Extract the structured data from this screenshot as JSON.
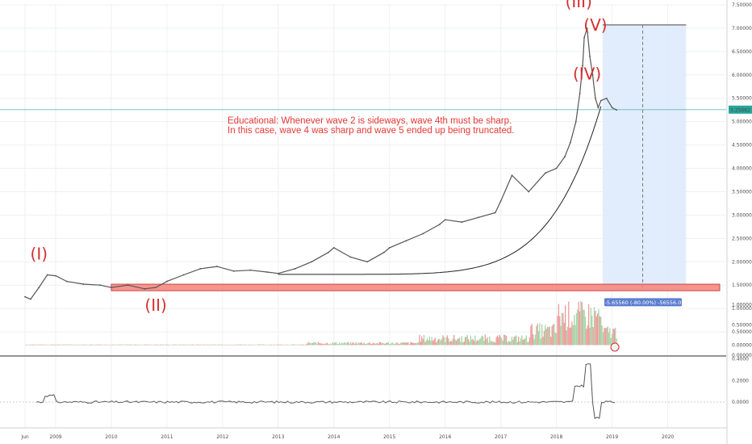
{
  "chart_data": {
    "type": "line",
    "series": [
      {
        "x": [
          2008.45,
          2008.55,
          2008.7,
          2008.85,
          2009.0,
          2009.2,
          2009.5,
          2009.8,
          2010.0,
          2010.3,
          2010.6,
          2010.8,
          2011.0,
          2011.3,
          2011.6,
          2011.9,
          2012.2,
          2012.5,
          2012.8,
          2013.0,
          2013.3,
          2013.6,
          2013.9,
          2014.0,
          2014.3,
          2014.6,
          2014.9,
          2015.0,
          2015.3,
          2015.6,
          2015.9,
          2016.0,
          2016.3,
          2016.6,
          2016.9,
          2017.0,
          2017.2,
          2017.5,
          2017.8,
          2018.0,
          2018.15,
          2018.25,
          2018.35,
          2018.42,
          2018.47,
          2018.5,
          2018.55,
          2018.6,
          2018.65,
          2018.7,
          2018.75,
          2018.8,
          2018.9,
          2019.0,
          2019.08
        ],
        "y": [
          1.25,
          1.2,
          1.45,
          1.72,
          1.7,
          1.58,
          1.52,
          1.5,
          1.45,
          1.5,
          1.42,
          1.45,
          1.58,
          1.72,
          1.85,
          1.9,
          1.8,
          1.82,
          1.78,
          1.75,
          1.85,
          2.0,
          2.2,
          2.3,
          2.1,
          2.0,
          2.2,
          2.3,
          2.45,
          2.6,
          2.8,
          2.9,
          2.85,
          2.95,
          3.05,
          3.3,
          3.85,
          3.5,
          3.9,
          4.0,
          4.25,
          4.55,
          5.0,
          5.6,
          6.2,
          6.8,
          7.0,
          6.4,
          6.0,
          5.5,
          5.3,
          5.45,
          5.5,
          5.3,
          5.25
        ]
      }
    ],
    "y_tick_labels": [
      "7.50000",
      "7.00000",
      "6.50000",
      "6.00000",
      "5.50000",
      "5.00000",
      "4.50000",
      "4.00000",
      "3.50000",
      "3.00000",
      "2.50000",
      "2.00000",
      "1.50000",
      "1.00000",
      "0.50000",
      "0.00000"
    ],
    "y_ticks": [
      7.5,
      7.0,
      6.5,
      6.0,
      5.5,
      5.0,
      4.5,
      4.0,
      3.5,
      3.0,
      2.5,
      2.0,
      1.5,
      1.0,
      0.5,
      0.0
    ],
    "x_tick_labels": [
      "Jun",
      "2009",
      "2010",
      "2011",
      "2012",
      "2013",
      "2014",
      "2015",
      "2016",
      "2017",
      "2018",
      "2019",
      "2020"
    ],
    "x_ticks": [
      2008.45,
      2009.0,
      2010.0,
      2011.0,
      2012.0,
      2013.0,
      2014.0,
      2015.0,
      2016.0,
      2017.0,
      2018.0,
      2019.0,
      2020.0
    ],
    "xlim": [
      2008.0,
      2021.05
    ],
    "ylim": [
      0.0,
      7.5
    ],
    "price_label": "5.25662",
    "price_level": 5.25662,
    "wave_labels": [
      {
        "text": "(I)",
        "x": 2008.7,
        "y": 2.05
      },
      {
        "text": "(II)",
        "x": 2010.8,
        "y": 0.95
      },
      {
        "text": "(III)",
        "x": 2018.4,
        "y": 7.45
      },
      {
        "text": "(IV)",
        "x": 2018.55,
        "y": 5.9
      },
      {
        "text": "(V)",
        "x": 2018.7,
        "y": 6.95
      }
    ],
    "annotation_lines": [
      "Educational: Whenever wave 2 is sideways, wave 4th must be sharp.",
      "In this case, wave 4 was sharp and wave 5 ended up being truncated."
    ],
    "support_level": 1.45,
    "measure_label": "-5.65560 (-80.00%) -56556.0",
    "volume_tick_labels": [
      "1.00000",
      "0.50000",
      "0.00000"
    ],
    "volume_ticks": [
      1.0,
      0.5,
      0.0
    ],
    "volume_ylim": [
      -0.25,
      1.45
    ],
    "oscillator_tick_labels": [
      "0.4000",
      "0.2000",
      "0.0000"
    ],
    "oscillator_ticks": [
      0.4,
      0.2,
      0.0
    ],
    "oscillator_ylim": [
      -0.24,
      0.42
    ],
    "colors": {
      "price": "#555555",
      "wave_label": "#d32f2f",
      "annotation": "#e53935",
      "support_fill": "#f28b82",
      "support_stroke": "#d32f2f",
      "projection_fill": "#dceafb",
      "price_line": "#26a69a",
      "badge": "#5b7fcf",
      "volume_up": "#a5d6a7",
      "volume_down": "#ef9a9a"
    }
  }
}
